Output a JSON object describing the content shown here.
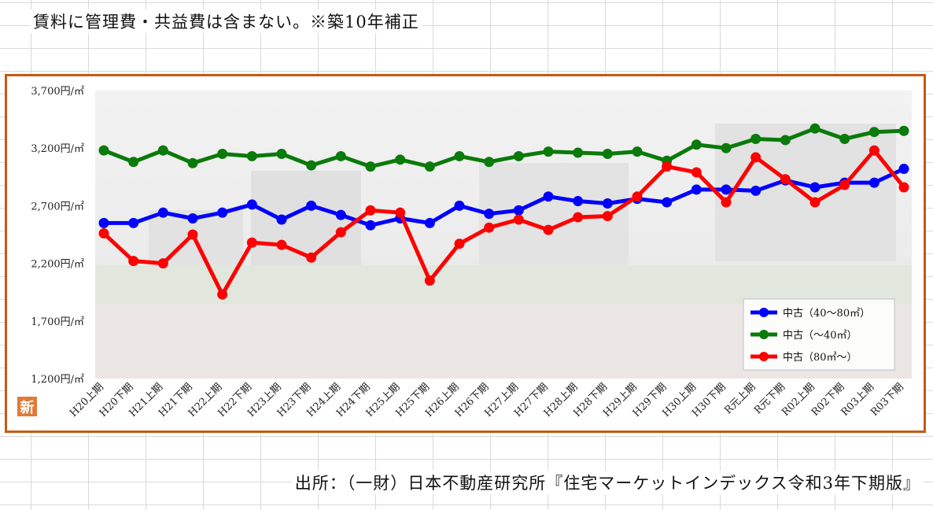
{
  "header": {
    "note": "賃料に管理費・共益費は含まない。※築10年補正"
  },
  "footer": {
    "source": "出所：（一財）日本不動産研究所『住宅マーケットインデックス令和3年下期版』"
  },
  "badge": {
    "text": "新"
  },
  "colors": {
    "frame": "#c55a11",
    "badge": "#e07b39",
    "series": [
      "#0000ff",
      "#0a7a0a",
      "#ff0000"
    ]
  },
  "chart_data": {
    "type": "line",
    "title": "",
    "xlabel": "",
    "ylabel": "",
    "ylim": [
      1200,
      3700
    ],
    "yticks": [
      1200,
      1700,
      2200,
      2700,
      3200,
      3700
    ],
    "ytick_labels": [
      "1,200円/㎡",
      "1,700円/㎡",
      "2,200円/㎡",
      "2,700円/㎡",
      "3,200円/㎡",
      "3,700円/㎡"
    ],
    "categories": [
      "H20上期",
      "H20下期",
      "H21上期",
      "H21下期",
      "H22上期",
      "H22下期",
      "H23上期",
      "H23下期",
      "H24上期",
      "H24下期",
      "H25上期",
      "H25下期",
      "H26上期",
      "H26下期",
      "H27上期",
      "H27下期",
      "H28上期",
      "H28下期",
      "H29上期",
      "H29下期",
      "H30上期",
      "H30下期",
      "R元上期",
      "R元下期",
      "R02上期",
      "R02下期",
      "R03上期",
      "R03下期"
    ],
    "legend_position": "bottom-right",
    "series": [
      {
        "name": "中古（40～80㎡）",
        "color": "#0000ff",
        "values": [
          2550,
          2550,
          2640,
          2590,
          2640,
          2710,
          2580,
          2700,
          2620,
          2530,
          2590,
          2550,
          2700,
          2630,
          2660,
          2780,
          2740,
          2720,
          2760,
          2730,
          2840,
          2840,
          2830,
          2920,
          2860,
          2900,
          2900,
          3020
        ]
      },
      {
        "name": "中古（～40㎡）",
        "color": "#0a7a0a",
        "values": [
          3180,
          3080,
          3180,
          3070,
          3150,
          3130,
          3150,
          3050,
          3130,
          3040,
          3100,
          3040,
          3130,
          3080,
          3130,
          3170,
          3160,
          3150,
          3170,
          3090,
          3230,
          3200,
          3280,
          3270,
          3370,
          3280,
          3340,
          3350
        ]
      },
      {
        "name": "中古（80㎡～）",
        "color": "#ff0000",
        "values": [
          2460,
          2220,
          2200,
          2450,
          1930,
          2380,
          2360,
          2250,
          2470,
          2660,
          2640,
          2050,
          2370,
          2510,
          2580,
          2490,
          2600,
          2610,
          2780,
          3040,
          2990,
          2730,
          3120,
          2930,
          2730,
          2880,
          3180,
          2860
        ]
      }
    ]
  }
}
